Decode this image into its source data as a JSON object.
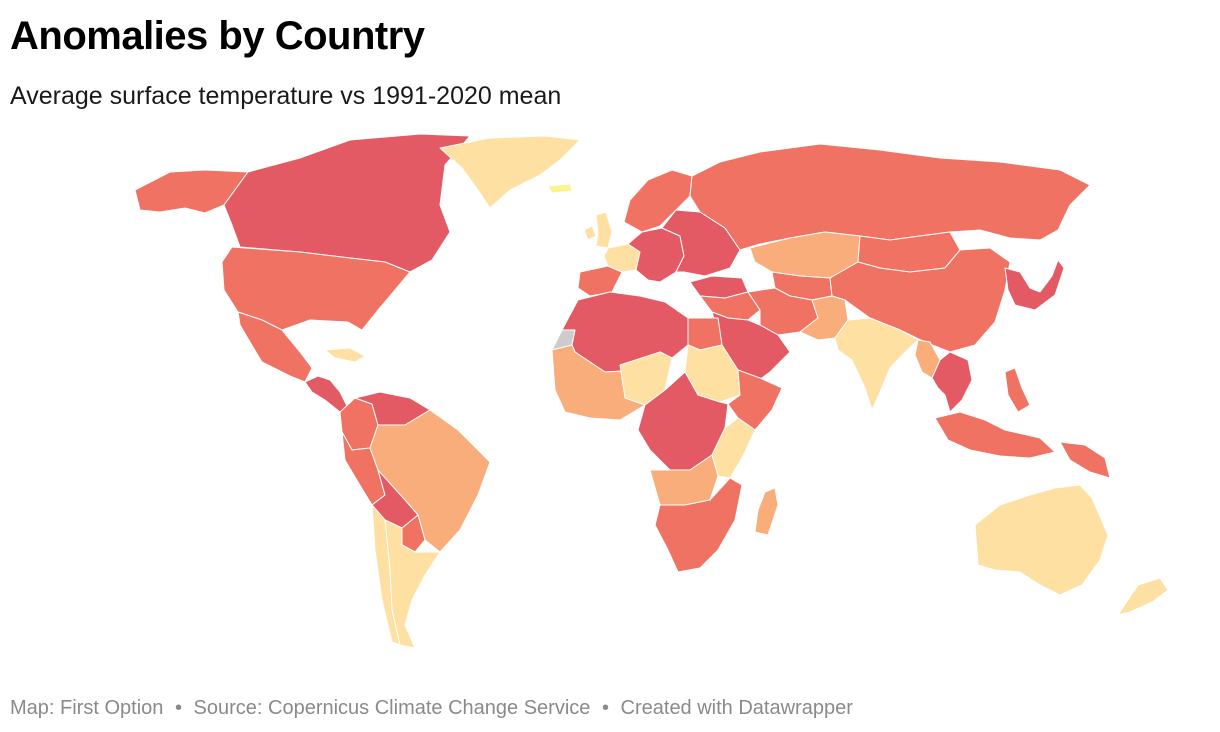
{
  "header": {
    "title": "Anomalies by Country",
    "subtitle": "Average surface temperature vs 1991-2020 mean"
  },
  "footer": {
    "map_credit": "Map: First Option",
    "source": "Source: Copernicus Climate Change Service",
    "created_with": "Created with Datawrapper",
    "separator": "•"
  },
  "colors": {
    "very_high": "#e45a64",
    "high": "#ef7262",
    "medium": "#f8ad7a",
    "low": "#fde0a2",
    "lowest": "#fbf48a",
    "no_data": "#cccccc",
    "border": "#ffffff"
  },
  "regions": [
    {
      "name": "Canada",
      "category": "very_high"
    },
    {
      "name": "Alaska",
      "category": "high"
    },
    {
      "name": "Greenland",
      "category": "low"
    },
    {
      "name": "Iceland",
      "category": "lowest"
    },
    {
      "name": "United States",
      "category": "high"
    },
    {
      "name": "Mexico",
      "category": "high"
    },
    {
      "name": "Central America",
      "category": "very_high"
    },
    {
      "name": "Caribbean",
      "category": "low"
    },
    {
      "name": "Colombia",
      "category": "high"
    },
    {
      "name": "Venezuela",
      "category": "very_high"
    },
    {
      "name": "Brazil",
      "category": "medium"
    },
    {
      "name": "Peru",
      "category": "high"
    },
    {
      "name": "Bolivia",
      "category": "very_high"
    },
    {
      "name": "Paraguay",
      "category": "high"
    },
    {
      "name": "Argentina",
      "category": "low"
    },
    {
      "name": "Chile",
      "category": "low"
    },
    {
      "name": "United Kingdom",
      "category": "low"
    },
    {
      "name": "Ireland",
      "category": "low"
    },
    {
      "name": "Iberia",
      "category": "high"
    },
    {
      "name": "France",
      "category": "low"
    },
    {
      "name": "Central Europe",
      "category": "very_high"
    },
    {
      "name": "Eastern Europe",
      "category": "very_high"
    },
    {
      "name": "Scandinavia",
      "category": "high"
    },
    {
      "name": "Turkey",
      "category": "very_high"
    },
    {
      "name": "Russia",
      "category": "high"
    },
    {
      "name": "Kazakhstan",
      "category": "medium"
    },
    {
      "name": "Central Asia",
      "category": "high"
    },
    {
      "name": "Mongolia",
      "category": "high"
    },
    {
      "name": "China",
      "category": "high"
    },
    {
      "name": "Korea & Japan",
      "category": "very_high"
    },
    {
      "name": "Middle East",
      "category": "high"
    },
    {
      "name": "Arabian Peninsula",
      "category": "very_high"
    },
    {
      "name": "Iran & Afghanistan",
      "category": "high"
    },
    {
      "name": "Pakistan",
      "category": "medium"
    },
    {
      "name": "India",
      "category": "low"
    },
    {
      "name": "Southeast Asia",
      "category": "very_high"
    },
    {
      "name": "Myanmar",
      "category": "medium"
    },
    {
      "name": "Indonesia",
      "category": "high"
    },
    {
      "name": "Philippines",
      "category": "high"
    },
    {
      "name": "Papua New Guinea",
      "category": "high"
    },
    {
      "name": "Australia",
      "category": "low"
    },
    {
      "name": "New Zealand",
      "category": "low"
    },
    {
      "name": "Western Sahara",
      "category": "no_data"
    },
    {
      "name": "North Africa",
      "category": "very_high"
    },
    {
      "name": "Egypt",
      "category": "high"
    },
    {
      "name": "West Africa",
      "category": "medium"
    },
    {
      "name": "Sahel",
      "category": "low"
    },
    {
      "name": "Sudan",
      "category": "low"
    },
    {
      "name": "Horn of Africa",
      "category": "high"
    },
    {
      "name": "Central Africa",
      "category": "very_high"
    },
    {
      "name": "East Africa",
      "category": "low"
    },
    {
      "name": "Angola & Zambia",
      "category": "medium"
    },
    {
      "name": "Southern Africa",
      "category": "high"
    },
    {
      "name": "Madagascar",
      "category": "medium"
    }
  ]
}
